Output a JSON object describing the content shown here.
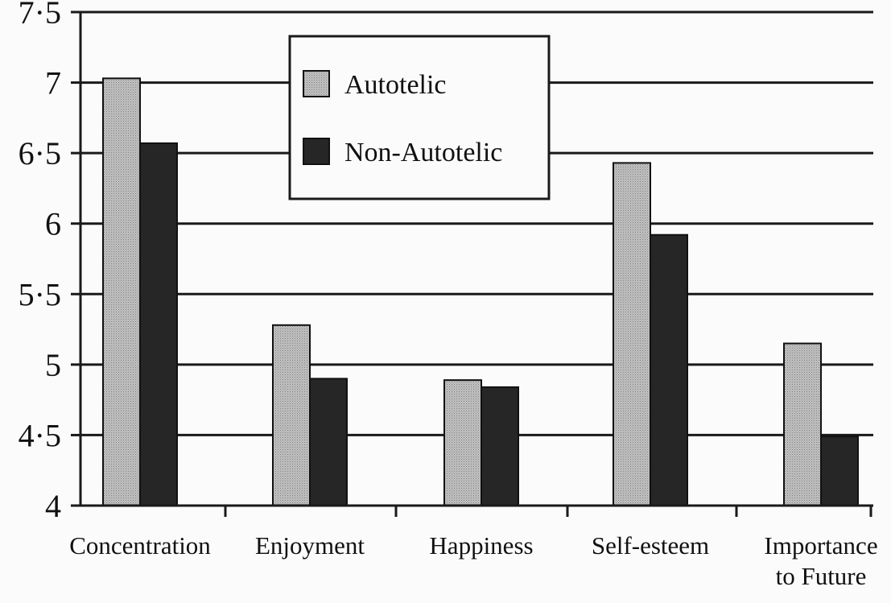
{
  "chart_data": {
    "type": "bar",
    "categories": [
      "Concentration",
      "Enjoyment",
      "Happiness",
      "Self-esteem",
      "Importance to Future"
    ],
    "category_lines": [
      [
        "Concentration"
      ],
      [
        "Enjoyment"
      ],
      [
        "Happiness"
      ],
      [
        "Self-esteem"
      ],
      [
        "Importance",
        "to Future"
      ]
    ],
    "series": [
      {
        "name": "Autotelic",
        "values": [
          7.03,
          5.28,
          4.89,
          6.43,
          5.15
        ],
        "color": "#b5b5b5"
      },
      {
        "name": "Non-Autotelic",
        "values": [
          6.57,
          4.9,
          4.84,
          5.92,
          4.49
        ],
        "color": "#262626"
      }
    ],
    "ylim": [
      4,
      7.5
    ],
    "yticks": [
      "4",
      "4·5",
      "5",
      "5·5",
      "6",
      "6·5",
      "7",
      "7·5"
    ],
    "ytick_values": [
      4,
      4.5,
      5,
      5.5,
      6,
      6.5,
      7,
      7.5
    ],
    "grid": true,
    "legend_position": "top-center",
    "title": "",
    "xlabel": "",
    "ylabel": ""
  }
}
